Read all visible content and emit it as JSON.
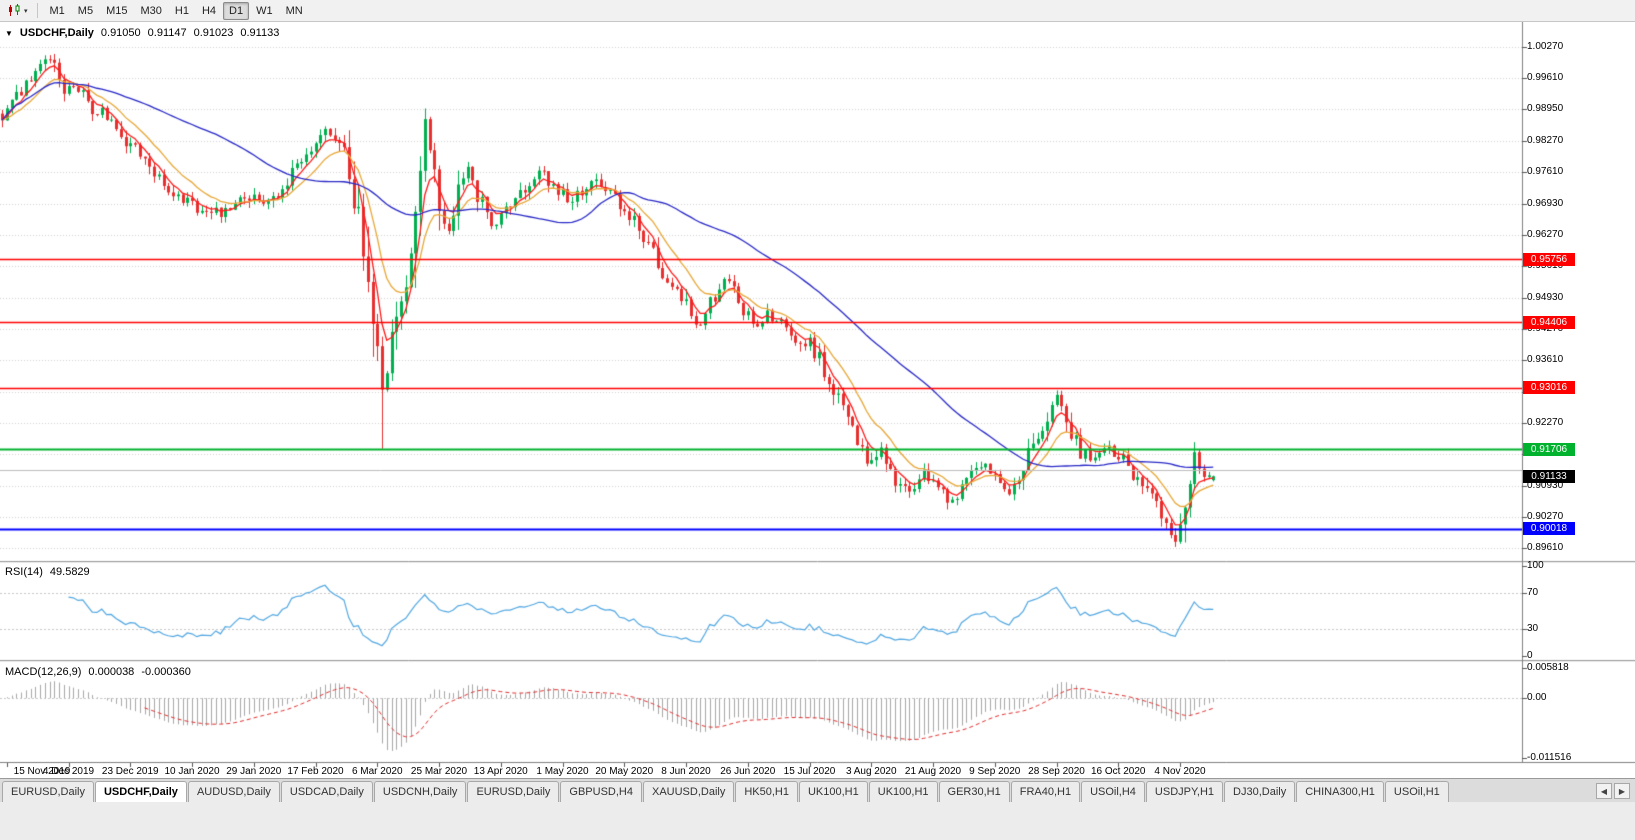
{
  "toolbar": {
    "timeframes": [
      "M1",
      "M5",
      "M15",
      "M30",
      "H1",
      "H4",
      "D1",
      "W1",
      "MN"
    ],
    "selected": "D1",
    "chart_menu_caret": "▾"
  },
  "chart_header": {
    "collapse_icon": "▼",
    "symbol": "USDCHF,Daily",
    "open": "0.91050",
    "high": "0.91147",
    "low": "0.91023",
    "close": "0.91133"
  },
  "price_axis": {
    "labels": [
      "1.00270",
      "0.99610",
      "0.98950",
      "0.98270",
      "0.97610",
      "0.96930",
      "0.96270",
      "0.95610",
      "0.94930",
      "0.94270",
      "0.93610",
      "0.92930",
      "0.92270",
      "0.91610",
      "0.90930",
      "0.90270",
      "0.89610"
    ]
  },
  "levels": [
    {
      "value": 0.95756,
      "label": "0.95756",
      "color": "#ff0000",
      "width": 1.6
    },
    {
      "value": 0.94406,
      "label": "0.94406",
      "color": "#ff0000",
      "width": 1.6
    },
    {
      "value": 0.93016,
      "label": "0.93016",
      "color": "#ff0000",
      "width": 1.6
    },
    {
      "value": 0.91706,
      "label": "0.91706",
      "color": "#00b22d",
      "width": 1.8
    },
    {
      "value": 0.90018,
      "label": "0.90018",
      "color": "#0000ff",
      "width": 2.2
    },
    {
      "value": 0.9127,
      "label": "",
      "color": "#bdbdbd",
      "width": 1
    }
  ],
  "current_price": {
    "value": 0.91133,
    "label": "0.91133",
    "bg": "#000000"
  },
  "date_axis": {
    "ticks": [
      {
        "index": 1,
        "label": "15 Nov 2019"
      },
      {
        "index": 14,
        "label": "4 Dec 2019"
      },
      {
        "index": 27,
        "label": "23 Dec 2019"
      },
      {
        "index": 40,
        "label": "10 Jan 2020"
      },
      {
        "index": 53,
        "label": "29 Jan 2020"
      },
      {
        "index": 66,
        "label": "17 Feb 2020"
      },
      {
        "index": 79,
        "label": "6 Mar 2020"
      },
      {
        "index": 92,
        "label": "25 Mar 2020"
      },
      {
        "index": 105,
        "label": "13 Apr 2020"
      },
      {
        "index": 118,
        "label": "1 May 2020"
      },
      {
        "index": 131,
        "label": "20 May 2020"
      },
      {
        "index": 144,
        "label": "8 Jun 2020"
      },
      {
        "index": 157,
        "label": "26 Jun 2020"
      },
      {
        "index": 170,
        "label": "15 Jul 2020"
      },
      {
        "index": 183,
        "label": "3 Aug 2020"
      },
      {
        "index": 196,
        "label": "21 Aug 2020"
      },
      {
        "index": 209,
        "label": "9 Sep 2020"
      },
      {
        "index": 222,
        "label": "28 Sep 2020"
      },
      {
        "index": 235,
        "label": "16 Oct 2020"
      },
      {
        "index": 248,
        "label": "4 Nov 2020"
      }
    ]
  },
  "rsi": {
    "title": "RSI(14)",
    "value_text": "49.5829",
    "period": 14,
    "color": "#53a8e2",
    "guide_levels": [
      70,
      30
    ],
    "axis": [
      {
        "label": "100",
        "value": 100
      },
      {
        "label": "70",
        "value": 70
      },
      {
        "label": "30",
        "value": 30
      },
      {
        "label": "0",
        "value": 0
      }
    ]
  },
  "macd": {
    "title": "MACD(12,26,9)",
    "value_main": "0.000038",
    "value_signal": "-0.000360",
    "hist_color": "#a8a8a8",
    "signal_color": "#e03030",
    "range": {
      "min": -0.011516,
      "max": 0.005818
    },
    "axis": [
      {
        "label": "0.005818",
        "value": 0.005818
      },
      {
        "label": "0.00",
        "value": 0
      },
      {
        "label": "-0.011516",
        "value": -0.011516
      }
    ]
  },
  "tabs": {
    "items": [
      "EURUSD,Daily",
      "USDCHF,Daily",
      "AUDUSD,Daily",
      "USDCAD,Daily",
      "USDCNH,Daily",
      "EURUSD,Daily",
      "GBPUSD,H4",
      "XAUUSD,Daily",
      "HK50,H1",
      "UK100,H1",
      "UK100,H1",
      "GER30,H1",
      "FRA40,H1",
      "USOil,H4",
      "USDJPY,H1",
      "DJ30,Daily",
      "CHINA300,H1",
      "USOil,H1"
    ],
    "selected_index": 1,
    "scroll_left": "◀",
    "scroll_right": "▶"
  },
  "chart_data": {
    "type": "candlestick",
    "symbol": "USDCHF",
    "timeframe": "Daily",
    "candle_count": 256,
    "price_range": {
      "min": 0.8933,
      "max": 1.008
    },
    "up_color": "#00b050",
    "down_color": "#e63030",
    "grid_color": "#d4d4d4",
    "macd_params": {
      "fast": 12,
      "slow": 26,
      "signal": 9
    },
    "ma": [
      {
        "type": "ema",
        "period": 5,
        "color": "#ff1a1a"
      },
      {
        "type": "ema",
        "period": 12,
        "color": "#e8a838"
      },
      {
        "type": "sma",
        "period": 45,
        "color": "#2929c8"
      }
    ],
    "last_candle": {
      "open": 0.9105,
      "high": 0.91147,
      "low": 0.91023,
      "close": 0.91133
    },
    "wick_overrides": {
      "11": {
        "high": 1.0012
      },
      "80": {
        "low": 0.9172
      },
      "89": {
        "high": 0.9896
      },
      "247": {
        "low": 0.8963
      },
      "251": {
        "high": 0.9186
      }
    },
    "price_path": [
      [
        0,
        0.9885
      ],
      [
        3,
        0.992
      ],
      [
        6,
        0.9965
      ],
      [
        9,
        1.0
      ],
      [
        11,
        1.0005
      ],
      [
        13,
        0.993
      ],
      [
        16,
        0.9938
      ],
      [
        19,
        0.9898
      ],
      [
        23,
        0.9872
      ],
      [
        26,
        0.983
      ],
      [
        30,
        0.9788
      ],
      [
        33,
        0.9742
      ],
      [
        36,
        0.9705
      ],
      [
        40,
        0.9688
      ],
      [
        44,
        0.9667
      ],
      [
        47,
        0.9682
      ],
      [
        50,
        0.9715
      ],
      [
        53,
        0.9702
      ],
      [
        56,
        0.971
      ],
      [
        59,
        0.9726
      ],
      [
        62,
        0.977
      ],
      [
        65,
        0.9812
      ],
      [
        68,
        0.9845
      ],
      [
        70,
        0.983
      ],
      [
        72,
        0.979
      ],
      [
        74,
        0.9705
      ],
      [
        76,
        0.9625
      ],
      [
        78,
        0.947
      ],
      [
        80,
        0.9295
      ],
      [
        81,
        0.934
      ],
      [
        83,
        0.944
      ],
      [
        85,
        0.953
      ],
      [
        87,
        0.965
      ],
      [
        89,
        0.9855
      ],
      [
        90,
        0.9805
      ],
      [
        92,
        0.9685
      ],
      [
        94,
        0.9628
      ],
      [
        96,
        0.9722
      ],
      [
        98,
        0.9758
      ],
      [
        100,
        0.9712
      ],
      [
        102,
        0.9668
      ],
      [
        104,
        0.9652
      ],
      [
        107,
        0.97
      ],
      [
        110,
        0.9728
      ],
      [
        113,
        0.9762
      ],
      [
        116,
        0.9732
      ],
      [
        119,
        0.9706
      ],
      [
        122,
        0.9722
      ],
      [
        125,
        0.9742
      ],
      [
        128,
        0.9715
      ],
      [
        131,
        0.9686
      ],
      [
        134,
        0.9642
      ],
      [
        137,
        0.9582
      ],
      [
        140,
        0.9522
      ],
      [
        143,
        0.9492
      ],
      [
        146,
        0.9432
      ],
      [
        149,
        0.9478
      ],
      [
        152,
        0.9528
      ],
      [
        155,
        0.9492
      ],
      [
        158,
        0.9432
      ],
      [
        161,
        0.9458
      ],
      [
        164,
        0.9446
      ],
      [
        167,
        0.9412
      ],
      [
        170,
        0.9396
      ],
      [
        173,
        0.9342
      ],
      [
        176,
        0.9272
      ],
      [
        179,
        0.9202
      ],
      [
        182,
        0.9142
      ],
      [
        185,
        0.9168
      ],
      [
        188,
        0.9106
      ],
      [
        191,
        0.9082
      ],
      [
        194,
        0.9126
      ],
      [
        197,
        0.9096
      ],
      [
        200,
        0.9056
      ],
      [
        203,
        0.9122
      ],
      [
        206,
        0.9146
      ],
      [
        209,
        0.9106
      ],
      [
        212,
        0.9086
      ],
      [
        215,
        0.9142
      ],
      [
        218,
        0.9192
      ],
      [
        221,
        0.9262
      ],
      [
        222,
        0.9282
      ],
      [
        224,
        0.9238
      ],
      [
        227,
        0.9162
      ],
      [
        230,
        0.9156
      ],
      [
        233,
        0.9172
      ],
      [
        236,
        0.9146
      ],
      [
        239,
        0.9106
      ],
      [
        242,
        0.9062
      ],
      [
        245,
        0.901
      ],
      [
        247,
        0.899
      ],
      [
        249,
        0.9062
      ],
      [
        251,
        0.9148
      ],
      [
        253,
        0.9124
      ],
      [
        255,
        0.9113
      ]
    ]
  }
}
